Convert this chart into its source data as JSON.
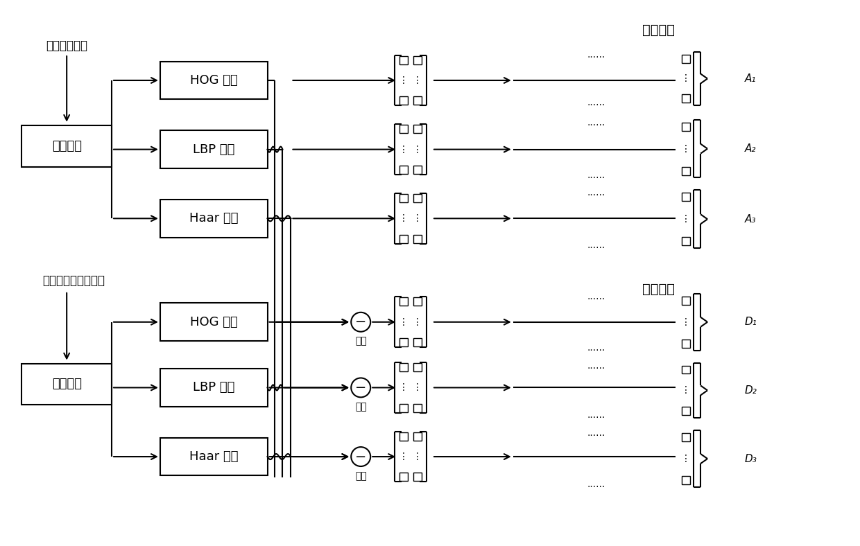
{
  "bg_color": "#ffffff",
  "text_color": "#000000",
  "box_color": "#ffffff",
  "box_edge": "#000000",
  "figsize": [
    12.4,
    7.88
  ],
  "dpi": 100,
  "top_label": "普通人脸图像",
  "bottom_label": "特定表情的人脸图像",
  "feat_extract": "特征提取",
  "hog": "HOG 特征",
  "lbp": "LBP 特征",
  "haar": "Haar 特征",
  "minus": "减去",
  "nominal_dict": "标称字典",
  "feature_dict": "特性字典",
  "A1": "A₁",
  "A2": "A₂",
  "A3": "A₃",
  "D1": "D₁",
  "D2": "D₂",
  "D3": "D₃",
  "dots6": "......",
  "vdots": "⋮"
}
